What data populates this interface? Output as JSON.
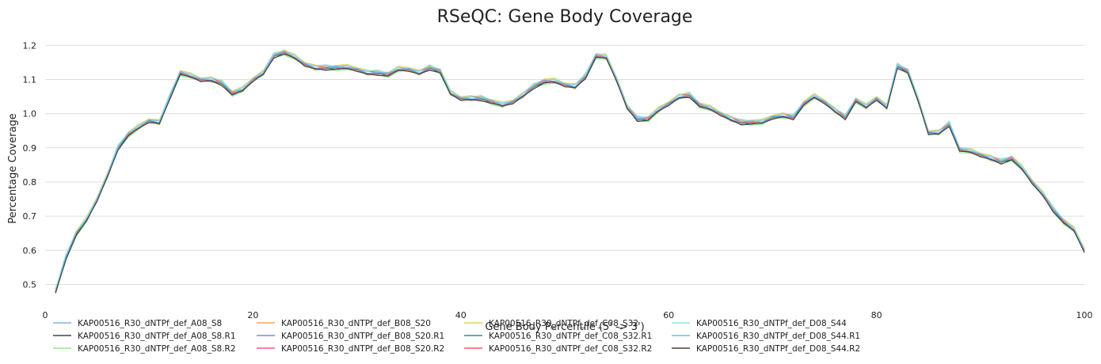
{
  "chart_data": {
    "type": "line",
    "title": "RSeQC: Gene Body Coverage",
    "xlabel": "Gene Body Percentile (5' -> 3')",
    "ylabel": "Percentage Coverage",
    "xlim": [
      0,
      100
    ],
    "ylim": [
      0.42,
      1.24
    ],
    "x_ticks": [
      0,
      20,
      40,
      60,
      80,
      100
    ],
    "y_ticks": [
      0.5,
      0.6,
      0.7,
      0.8,
      0.9,
      1.0,
      1.1,
      1.2
    ],
    "grid": "horizontal",
    "legend_position": "bottom",
    "series": [
      {
        "name": "KAP00516_R30_dNTPf_def_A08_S8",
        "color": "#7cb5ec"
      },
      {
        "name": "KAP00516_R30_dNTPf_def_A08_S8.R1",
        "color": "#434348"
      },
      {
        "name": "KAP00516_R30_dNTPf_def_A08_S8.R2",
        "color": "#90ed7d"
      },
      {
        "name": "KAP00516_R30_dNTPf_def_B08_S20",
        "color": "#f7a35c"
      },
      {
        "name": "KAP00516_R30_dNTPf_def_B08_S20.R1",
        "color": "#8085e9"
      },
      {
        "name": "KAP00516_R30_dNTPf_def_B08_S20.R2",
        "color": "#f15c80"
      },
      {
        "name": "KAP00516_R30_dNTPf_def_C08_S32",
        "color": "#e4d354"
      },
      {
        "name": "KAP00516_R30_dNTPf_def_C08_S32.R1",
        "color": "#2b908f"
      },
      {
        "name": "KAP00516_R30_dNTPf_def_C08_S32.R2",
        "color": "#f45b5b"
      },
      {
        "name": "KAP00516_R30_dNTPf_def_D08_S44",
        "color": "#91e8e1"
      },
      {
        "name": "KAP00516_R30_dNTPf_def_D08_S44.R1",
        "color": "#7cb5ec"
      },
      {
        "name": "KAP00516_R30_dNTPf_def_D08_S44.R2",
        "color": "#434348"
      }
    ],
    "base_x": [
      1,
      2,
      3,
      4,
      5,
      6,
      7,
      8,
      9,
      10,
      11,
      12,
      13,
      14,
      15,
      16,
      17,
      18,
      19,
      20,
      21,
      22,
      23,
      24,
      25,
      26,
      27,
      28,
      29,
      30,
      31,
      32,
      33,
      34,
      35,
      36,
      37,
      38,
      39,
      40,
      41,
      42,
      43,
      44,
      45,
      46,
      47,
      48,
      49,
      50,
      51,
      52,
      53,
      54,
      55,
      56,
      57,
      58,
      59,
      60,
      61,
      62,
      63,
      64,
      65,
      66,
      67,
      68,
      69,
      70,
      71,
      72,
      73,
      74,
      75,
      76,
      77,
      78,
      79,
      80,
      81,
      82,
      83,
      84,
      85,
      86,
      87,
      88,
      89,
      90,
      91,
      92,
      93,
      94,
      95,
      96,
      97,
      98,
      99,
      100
    ],
    "base_values": [
      0.48,
      0.58,
      0.65,
      0.69,
      0.75,
      0.82,
      0.9,
      0.94,
      0.96,
      0.98,
      0.975,
      1.05,
      1.12,
      1.11,
      1.1,
      1.1,
      1.09,
      1.06,
      1.07,
      1.1,
      1.12,
      1.17,
      1.18,
      1.165,
      1.145,
      1.135,
      1.135,
      1.135,
      1.135,
      1.13,
      1.12,
      1.12,
      1.115,
      1.13,
      1.13,
      1.12,
      1.135,
      1.125,
      1.06,
      1.045,
      1.045,
      1.045,
      1.035,
      1.025,
      1.035,
      1.055,
      1.08,
      1.095,
      1.095,
      1.085,
      1.08,
      1.11,
      1.17,
      1.165,
      1.1,
      1.02,
      0.985,
      0.985,
      1.01,
      1.03,
      1.05,
      1.055,
      1.025,
      1.015,
      1.0,
      0.985,
      0.975,
      0.975,
      0.975,
      0.99,
      0.995,
      0.99,
      1.03,
      1.05,
      1.035,
      1.01,
      0.99,
      1.04,
      1.02,
      1.045,
      1.02,
      1.14,
      1.125,
      1.04,
      0.945,
      0.945,
      0.97,
      0.895,
      0.89,
      0.88,
      0.87,
      0.86,
      0.87,
      0.84,
      0.8,
      0.765,
      0.72,
      0.685,
      0.66,
      0.6
    ],
    "offsets": [
      0.0,
      -0.004,
      -0.006,
      0.003,
      0.004,
      -0.003,
      0.006,
      -0.002,
      0.002,
      0.005,
      0.001,
      -0.005
    ]
  }
}
